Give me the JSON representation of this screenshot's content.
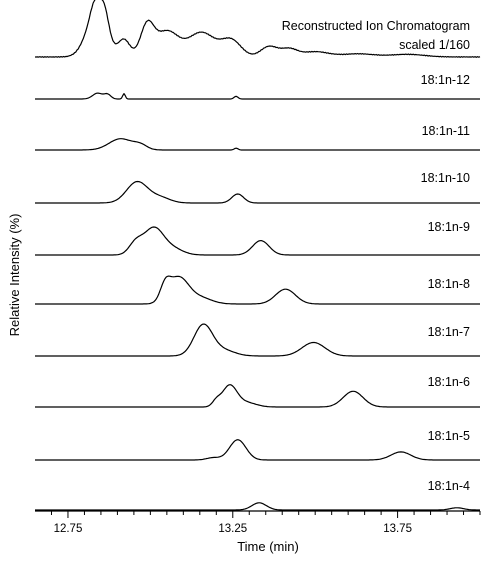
{
  "chart_data": {
    "type": "line",
    "xlabel": "Time (min)",
    "ylabel": "Relative Intensity (%)",
    "xlim": [
      12.65,
      14.0
    ],
    "x_ticks": [
      12.75,
      13.25,
      13.75
    ],
    "x_tick_labels": [
      "12.75",
      "13.25",
      "13.75"
    ],
    "grid": false,
    "layout": "stacked-traces",
    "series": [
      {
        "name": "Reconstructed Ion Chromatogram",
        "note": "scaled 1/160",
        "baseline": 0.02,
        "noise": 0.5,
        "peaks": [
          {
            "rt": 12.835,
            "h": 0.8,
            "w": 0.03
          },
          {
            "rt": 12.83,
            "h": 0.25,
            "w": 0.012
          },
          {
            "rt": 12.86,
            "h": 0.45,
            "w": 0.014
          },
          {
            "rt": 12.92,
            "h": 0.33,
            "w": 0.018
          },
          {
            "rt": 12.99,
            "h": 0.58,
            "w": 0.02
          },
          {
            "rt": 13.05,
            "h": 0.49,
            "w": 0.035
          },
          {
            "rt": 13.155,
            "h": 0.47,
            "w": 0.04
          },
          {
            "rt": 13.245,
            "h": 0.32,
            "w": 0.03
          },
          {
            "rt": 13.36,
            "h": 0.2,
            "w": 0.025
          },
          {
            "rt": 13.42,
            "h": 0.15,
            "w": 0.025
          },
          {
            "rt": 13.5,
            "h": 0.1,
            "w": 0.04
          },
          {
            "rt": 13.63,
            "h": 0.06,
            "w": 0.05
          },
          {
            "rt": 13.78,
            "h": 0.05,
            "w": 0.05
          }
        ]
      },
      {
        "name": "18:1n-12",
        "baseline": 0.0,
        "noise": 0.0,
        "peaks": [
          {
            "rt": 12.84,
            "h": 0.13,
            "w": 0.015
          },
          {
            "rt": 12.87,
            "h": 0.1,
            "w": 0.01
          },
          {
            "rt": 12.92,
            "h": 0.12,
            "w": 0.004
          },
          {
            "rt": 13.26,
            "h": 0.06,
            "w": 0.006
          }
        ]
      },
      {
        "name": "18:1n-11",
        "baseline": 0.0,
        "noise": 0.0,
        "peaks": [
          {
            "rt": 12.91,
            "h": 0.25,
            "w": 0.035
          },
          {
            "rt": 12.97,
            "h": 0.1,
            "w": 0.02
          },
          {
            "rt": 13.26,
            "h": 0.04,
            "w": 0.006
          }
        ]
      },
      {
        "name": "18:1n-10",
        "baseline": 0.0,
        "noise": 0.0,
        "peaks": [
          {
            "rt": 12.96,
            "h": 0.47,
            "w": 0.032
          },
          {
            "rt": 13.03,
            "h": 0.12,
            "w": 0.03
          },
          {
            "rt": 13.265,
            "h": 0.2,
            "w": 0.018
          }
        ]
      },
      {
        "name": "18:1n-9",
        "baseline": 0.0,
        "noise": 0.0,
        "peaks": [
          {
            "rt": 12.955,
            "h": 0.25,
            "w": 0.02
          },
          {
            "rt": 13.01,
            "h": 0.6,
            "w": 0.03
          },
          {
            "rt": 13.07,
            "h": 0.13,
            "w": 0.03
          },
          {
            "rt": 13.335,
            "h": 0.32,
            "w": 0.025
          }
        ]
      },
      {
        "name": "18:1n-8",
        "baseline": 0.0,
        "noise": 0.0,
        "peaks": [
          {
            "rt": 13.045,
            "h": 0.33,
            "w": 0.015
          },
          {
            "rt": 13.085,
            "h": 0.58,
            "w": 0.03
          },
          {
            "rt": 13.15,
            "h": 0.14,
            "w": 0.035
          },
          {
            "rt": 13.41,
            "h": 0.33,
            "w": 0.03
          }
        ]
      },
      {
        "name": "18:1n-7",
        "baseline": 0.0,
        "noise": 0.0,
        "peaks": [
          {
            "rt": 13.16,
            "h": 0.68,
            "w": 0.028
          },
          {
            "rt": 13.22,
            "h": 0.13,
            "w": 0.035
          },
          {
            "rt": 13.495,
            "h": 0.3,
            "w": 0.035
          }
        ]
      },
      {
        "name": "18:1n-6",
        "baseline": 0.0,
        "noise": 0.0,
        "peaks": [
          {
            "rt": 13.2,
            "h": 0.12,
            "w": 0.012
          },
          {
            "rt": 13.24,
            "h": 0.47,
            "w": 0.022
          },
          {
            "rt": 13.29,
            "h": 0.1,
            "w": 0.03
          },
          {
            "rt": 13.615,
            "h": 0.35,
            "w": 0.03
          }
        ]
      },
      {
        "name": "18:1n-5",
        "baseline": 0.0,
        "noise": 0.0,
        "peaks": [
          {
            "rt": 13.19,
            "h": 0.05,
            "w": 0.02
          },
          {
            "rt": 13.265,
            "h": 0.45,
            "w": 0.025
          },
          {
            "rt": 13.76,
            "h": 0.18,
            "w": 0.03
          }
        ]
      },
      {
        "name": "18:1n-4",
        "baseline": 0.0,
        "noise": 0.0,
        "peaks": [
          {
            "rt": 13.33,
            "h": 0.16,
            "w": 0.022
          },
          {
            "rt": 13.93,
            "h": 0.05,
            "w": 0.02
          }
        ]
      }
    ]
  }
}
